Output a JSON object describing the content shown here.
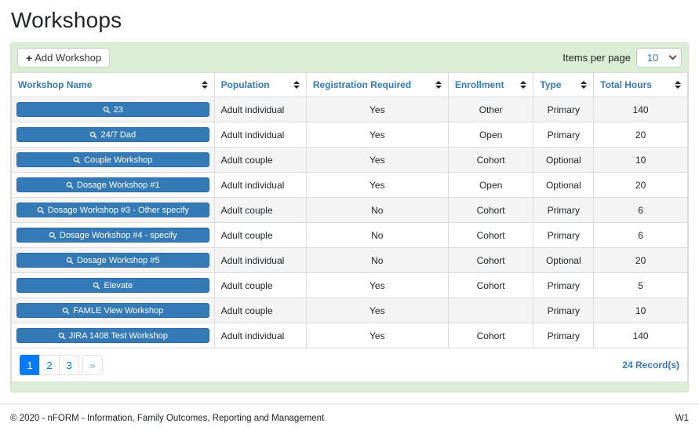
{
  "page": {
    "title": "Workshops"
  },
  "toolbar": {
    "add_button_label": "Add Workshop",
    "plus_icon": "+",
    "items_per_page_label": "Items per page",
    "items_per_page_value": "10"
  },
  "table": {
    "columns": [
      "Workshop Name",
      "Population",
      "Registration Required",
      "Enrollment",
      "Type",
      "Total Hours"
    ],
    "rows": [
      {
        "name": "23",
        "population": "Adult individual",
        "registration_required": "Yes",
        "enrollment": "Other",
        "type": "Primary",
        "total_hours": "140"
      },
      {
        "name": "24/7 Dad",
        "population": "Adult individual",
        "registration_required": "Yes",
        "enrollment": "Open",
        "type": "Primary",
        "total_hours": "20"
      },
      {
        "name": "Couple Workshop",
        "population": "Adult couple",
        "registration_required": "Yes",
        "enrollment": "Cohort",
        "type": "Optional",
        "total_hours": "10"
      },
      {
        "name": "Dosage Workshop #1",
        "population": "Adult individual",
        "registration_required": "Yes",
        "enrollment": "Open",
        "type": "Optional",
        "total_hours": "20"
      },
      {
        "name": "Dosage Workshop #3 - Other specify",
        "population": "Adult couple",
        "registration_required": "No",
        "enrollment": "Cohort",
        "type": "Primary",
        "total_hours": "6"
      },
      {
        "name": "Dosage Workshop #4 - specify",
        "population": "Adult couple",
        "registration_required": "No",
        "enrollment": "Cohort",
        "type": "Primary",
        "total_hours": "6"
      },
      {
        "name": "Dosage Workshop #5",
        "population": "Adult individual",
        "registration_required": "No",
        "enrollment": "Cohort",
        "type": "Optional",
        "total_hours": "20"
      },
      {
        "name": "Elevate",
        "population": "Adult couple",
        "registration_required": "Yes",
        "enrollment": "Cohort",
        "type": "Primary",
        "total_hours": "5"
      },
      {
        "name": "FAMLE View Workshop",
        "population": "Adult couple",
        "registration_required": "Yes",
        "enrollment": "",
        "type": "Primary",
        "total_hours": "10"
      },
      {
        "name": "JIRA 1408 Test Workshop",
        "population": "Adult individual",
        "registration_required": "Yes",
        "enrollment": "Cohort",
        "type": "Primary",
        "total_hours": "140"
      }
    ]
  },
  "pagination": {
    "pages": [
      "1",
      "2",
      "3"
    ],
    "active_page": "1",
    "next_label": "»",
    "records_label": "24 Record(s)"
  },
  "footer": {
    "copyright": "© 2020 - nFORM - Information, Family Outcomes, Reporting and Management",
    "version": "W1"
  },
  "colors": {
    "accent_blue": "#337ab7",
    "pagination_blue": "#007bff",
    "panel_green": "#dcedd5",
    "stripe_gray": "#f4f4f4"
  }
}
